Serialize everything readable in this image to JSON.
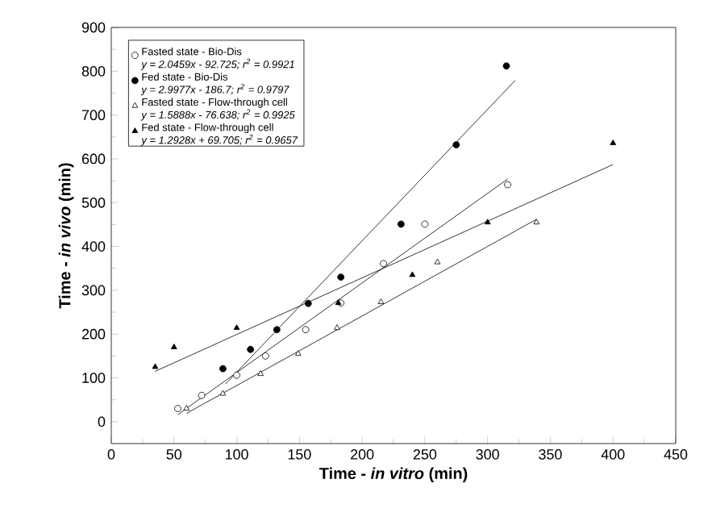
{
  "chart_data": {
    "type": "scatter",
    "xlabel": "Time - *in vitro* (min)",
    "ylabel": "Time - *in vivo* (min)",
    "xlim": [
      0,
      450
    ],
    "ylim": [
      -50,
      900
    ],
    "xticks": [
      0,
      50,
      100,
      150,
      200,
      250,
      300,
      350,
      400,
      450
    ],
    "yticks": [
      0,
      100,
      200,
      300,
      400,
      500,
      600,
      700,
      800,
      900
    ],
    "legend": "top left",
    "grid": false,
    "annotations": [
      "y = 2.0459x - 92.725; r$^{2}$ = 0.9921",
      "y = 2.9977x - 186.7; r$^{2}$ = 0.9797",
      "y = 1.5888x - 76.638; r$^{2}$ = 0.9925",
      "y = 1.2928x + 69.705; r$^{2}$ = 0.9657"
    ],
    "series": [
      {
        "name": "Fasted state - Bio-Dis",
        "marker": "circle",
        "color": "#ffffff",
        "x": [
          53,
          72,
          100,
          123,
          155,
          183,
          217,
          250,
          316
        ],
        "values": [
          30,
          60,
          106,
          150,
          210,
          271,
          361,
          451,
          541
        ]
      },
      {
        "name": "Fed state - Bio-Dis",
        "marker": "circle",
        "color": "#000000",
        "x": [
          89,
          111,
          132,
          157,
          183,
          231,
          275,
          315
        ],
        "values": [
          121,
          165,
          210,
          270,
          330,
          451,
          632,
          812
        ]
      },
      {
        "name": "Fasted state - Flow-through cell",
        "marker": "triangle",
        "color": "#ffffff",
        "x": [
          60,
          89,
          119,
          149,
          180,
          215,
          260,
          339
        ],
        "values": [
          30,
          64,
          109,
          155,
          214,
          273,
          364,
          455
        ]
      },
      {
        "name": "Fed state - Flow-through cell",
        "marker": "triangle",
        "color": "#000000",
        "x": [
          35,
          50,
          100,
          181,
          240,
          300,
          400
        ],
        "values": [
          125,
          170,
          214,
          271,
          335,
          455,
          636
        ]
      },
      {
        "type": "line",
        "color": "#000000",
        "marker": "none",
        "line_style": "solid",
        "x": [
          53,
          316
        ],
        "values": [
          16,
          554
        ]
      },
      {
        "type": "line",
        "color": "#000000",
        "marker": "none",
        "line_style": "solid",
        "x": [
          91,
          322
        ],
        "values": [
          86,
          779
        ]
      },
      {
        "type": "line",
        "color": "#000000",
        "marker": "none",
        "line_style": "solid",
        "x": [
          60,
          339
        ],
        "values": [
          19,
          462
        ]
      },
      {
        "type": "line",
        "color": "#000000",
        "marker": "none",
        "line_style": "solid",
        "x": [
          35,
          400
        ],
        "values": [
          115,
          587
        ]
      }
    ]
  }
}
